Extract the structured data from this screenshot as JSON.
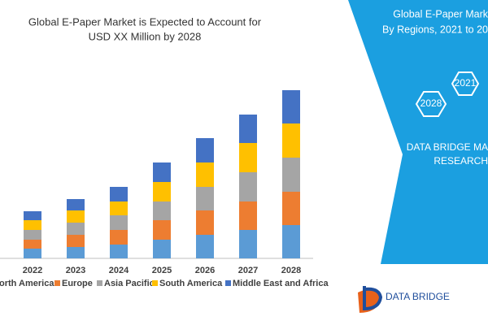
{
  "chart_data": {
    "type": "bar",
    "stacked": true,
    "title": [
      "Global E-Paper Market is Expected to Account for",
      "USD XX Million by 2028"
    ],
    "categories": [
      "2022",
      "2023",
      "2024",
      "2025",
      "2026",
      "2027",
      "2028"
    ],
    "series": [
      {
        "name": "orth America",
        "color": "#5b9bd5",
        "values": [
          12,
          14,
          17,
          23,
          29,
          35,
          41
        ]
      },
      {
        "name": "Europe",
        "color": "#ed7d31",
        "values": [
          11,
          15,
          18,
          24,
          30,
          35,
          41
        ]
      },
      {
        "name": "Asia Pacific",
        "color": "#a5a5a5",
        "values": [
          12,
          15,
          18,
          23,
          29,
          36,
          42
        ]
      },
      {
        "name": "South America",
        "color": "#ffc000",
        "values": [
          12,
          15,
          17,
          24,
          30,
          36,
          42
        ]
      },
      {
        "name": "Middle East and Africa",
        "color": "#4472c4",
        "values": [
          11,
          14,
          18,
          24,
          30,
          35,
          41
        ]
      }
    ]
  },
  "panel": {
    "heading": [
      "Global E-Paper Mark",
      "By Regions, 2021 to 20"
    ],
    "hexagons": [
      "2021",
      "2028"
    ],
    "brand": [
      "DATA BRIDGE MA",
      "RESEARCH"
    ],
    "logo": "DATA BRIDGE"
  }
}
